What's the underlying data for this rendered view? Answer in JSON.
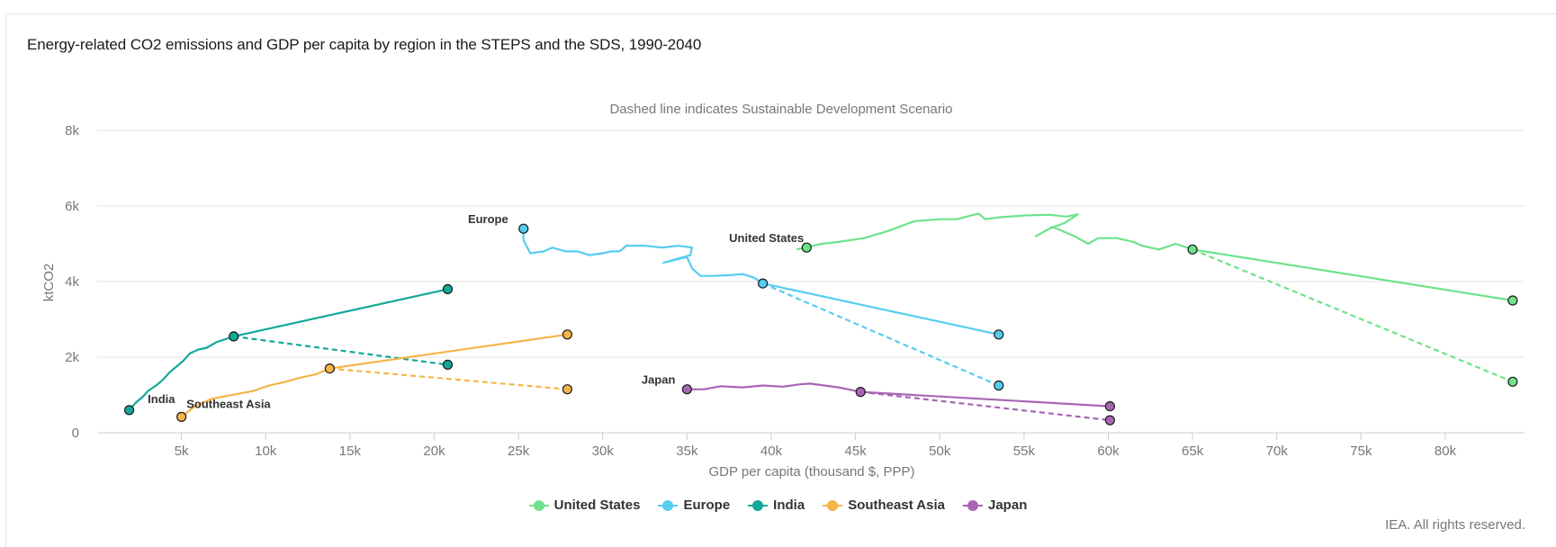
{
  "title": "Energy-related CO2 emissions and GDP per capita by region in the STEPS and the SDS, 1990-2040",
  "credit": "IEA. All rights reserved.",
  "chart_data": {
    "type": "line",
    "subtitle": "Dashed line indicates Sustainable Development Scenario",
    "xlabel": "GDP per capita (thousand $, PPP)",
    "ylabel": "ktCO2",
    "xlim": [
      0,
      84700
    ],
    "ylim": [
      0,
      8000
    ],
    "xticks": [
      5000,
      10000,
      15000,
      20000,
      25000,
      30000,
      35000,
      40000,
      45000,
      50000,
      55000,
      60000,
      65000,
      70000,
      75000,
      80000
    ],
    "xtick_labels": [
      "5k",
      "10k",
      "15k",
      "20k",
      "25k",
      "30k",
      "35k",
      "40k",
      "45k",
      "50k",
      "55k",
      "60k",
      "65k",
      "70k",
      "75k",
      "80k"
    ],
    "yticks": [
      0,
      2000,
      4000,
      6000,
      8000
    ],
    "ytick_labels": [
      "0",
      "2k",
      "4k",
      "6k",
      "8k"
    ],
    "grid": true,
    "legend_position": "bottom-center",
    "series": [
      {
        "name": "United States",
        "color": "#6ee28c",
        "historical": [
          [
            41500,
            4850
          ],
          [
            42000,
            4900
          ],
          [
            43000,
            5000
          ],
          [
            44000,
            5050
          ],
          [
            45500,
            5150
          ],
          [
            47000,
            5350
          ],
          [
            48500,
            5600
          ],
          [
            50000,
            5650
          ],
          [
            51000,
            5650
          ],
          [
            52300,
            5800
          ],
          [
            52700,
            5650
          ],
          [
            53500,
            5700
          ],
          [
            55000,
            5750
          ],
          [
            56500,
            5770
          ],
          [
            57500,
            5720
          ],
          [
            58200,
            5780
          ],
          [
            57400,
            5550
          ],
          [
            56500,
            5400
          ],
          [
            55700,
            5200
          ],
          [
            56700,
            5450
          ],
          [
            58000,
            5200
          ],
          [
            58800,
            5000
          ],
          [
            59400,
            5150
          ],
          [
            60500,
            5150
          ],
          [
            61500,
            5050
          ],
          [
            62000,
            4950
          ],
          [
            63000,
            4850
          ],
          [
            64000,
            5000
          ],
          [
            65000,
            4850
          ]
        ],
        "steps": [
          [
            65000,
            4850
          ],
          [
            84000,
            3500
          ]
        ],
        "sds": [
          [
            65000,
            4850
          ],
          [
            84000,
            1350
          ]
        ],
        "markers": [
          [
            42100,
            4900
          ],
          [
            65000,
            4850
          ],
          [
            84000,
            3500
          ],
          [
            84000,
            1350
          ]
        ],
        "label": "United States",
        "label_at": [
          37500,
          5050
        ]
      },
      {
        "name": "Europe",
        "color": "#56cdf0",
        "historical": [
          [
            25300,
            5400
          ],
          [
            25300,
            5100
          ],
          [
            25700,
            4750
          ],
          [
            26500,
            4800
          ],
          [
            27000,
            4900
          ],
          [
            27800,
            4800
          ],
          [
            28500,
            4800
          ],
          [
            29200,
            4700
          ],
          [
            30000,
            4750
          ],
          [
            30500,
            4800
          ],
          [
            31000,
            4800
          ],
          [
            31400,
            4950
          ],
          [
            32500,
            4950
          ],
          [
            33500,
            4900
          ],
          [
            34500,
            4950
          ],
          [
            35300,
            4900
          ],
          [
            35200,
            4700
          ],
          [
            34400,
            4600
          ],
          [
            33600,
            4500
          ],
          [
            35000,
            4650
          ],
          [
            35300,
            4350
          ],
          [
            35800,
            4150
          ],
          [
            36500,
            4150
          ],
          [
            37500,
            4170
          ],
          [
            38300,
            4200
          ],
          [
            39000,
            4100
          ],
          [
            39500,
            3950
          ]
        ],
        "steps": [
          [
            39500,
            3950
          ],
          [
            53500,
            2600
          ]
        ],
        "sds": [
          [
            39500,
            3950
          ],
          [
            53500,
            1250
          ]
        ],
        "markers": [
          [
            25300,
            5400
          ],
          [
            39500,
            3950
          ],
          [
            53500,
            2600
          ],
          [
            53500,
            1250
          ]
        ],
        "label": "Europe",
        "label_at": [
          22000,
          5550
        ]
      },
      {
        "name": "India",
        "color": "#14a899",
        "historical": [
          [
            1900,
            600
          ],
          [
            2300,
            800
          ],
          [
            2700,
            950
          ],
          [
            3000,
            1100
          ],
          [
            3500,
            1250
          ],
          [
            3900,
            1400
          ],
          [
            4300,
            1600
          ],
          [
            4700,
            1750
          ],
          [
            5100,
            1900
          ],
          [
            5500,
            2100
          ],
          [
            6000,
            2200
          ],
          [
            6500,
            2250
          ],
          [
            7100,
            2400
          ],
          [
            8100,
            2550
          ]
        ],
        "steps": [
          [
            8100,
            2550
          ],
          [
            20800,
            3800
          ]
        ],
        "sds": [
          [
            8100,
            2550
          ],
          [
            20800,
            1800
          ]
        ],
        "markers": [
          [
            1900,
            600
          ],
          [
            8100,
            2550
          ],
          [
            20800,
            3800
          ],
          [
            20800,
            1800
          ]
        ],
        "label": "India",
        "label_at": [
          3000,
          780
        ]
      },
      {
        "name": "Southeast Asia",
        "color": "#f5b54a",
        "historical": [
          [
            5000,
            420
          ],
          [
            5800,
            700
          ],
          [
            6800,
            900
          ],
          [
            8000,
            1000
          ],
          [
            9200,
            1100
          ],
          [
            10200,
            1250
          ],
          [
            11200,
            1350
          ],
          [
            12000,
            1450
          ],
          [
            13000,
            1550
          ],
          [
            13800,
            1700
          ]
        ],
        "steps": [
          [
            13800,
            1700
          ],
          [
            27900,
            2600
          ]
        ],
        "sds": [
          [
            13800,
            1700
          ],
          [
            27900,
            1150
          ]
        ],
        "markers": [
          [
            5000,
            420
          ],
          [
            13800,
            1700
          ],
          [
            27900,
            2600
          ],
          [
            27900,
            1150
          ]
        ],
        "label": "Southeast Asia",
        "label_at": [
          5300,
          650
        ]
      },
      {
        "name": "Japan",
        "color": "#a865b4",
        "historical": [
          [
            35000,
            1150
          ],
          [
            36000,
            1150
          ],
          [
            37000,
            1230
          ],
          [
            38300,
            1200
          ],
          [
            39500,
            1250
          ],
          [
            40700,
            1220
          ],
          [
            41700,
            1280
          ],
          [
            42300,
            1300
          ],
          [
            43000,
            1260
          ],
          [
            44000,
            1200
          ],
          [
            45300,
            1080
          ]
        ],
        "steps": [
          [
            45300,
            1080
          ],
          [
            60100,
            700
          ]
        ],
        "sds": [
          [
            45300,
            1080
          ],
          [
            60100,
            330
          ]
        ],
        "markers": [
          [
            35000,
            1150
          ],
          [
            45300,
            1080
          ],
          [
            60100,
            700
          ],
          [
            60100,
            330
          ]
        ],
        "label": "Japan",
        "label_at": [
          32300,
          1300
        ]
      }
    ]
  }
}
